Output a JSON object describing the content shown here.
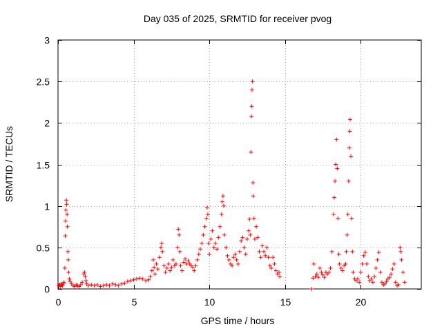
{
  "chart_data": {
    "type": "scatter",
    "title": "Day 035 of 2025, SRMTID for receiver pvog",
    "xlabel": "GPS time / hours",
    "ylabel": "SRMTID / TECUs",
    "xlim": [
      0,
      24
    ],
    "ylim": [
      0,
      3
    ],
    "x_ticks": [
      "0",
      "5",
      "10",
      "15",
      "20"
    ],
    "x_tick_values": [
      0,
      5,
      10,
      15,
      20
    ],
    "y_ticks": [
      "0",
      "0.5",
      "1",
      "1.5",
      "2",
      "2.5",
      "3"
    ],
    "y_tick_values": [
      0,
      0.5,
      1,
      1.5,
      2,
      2.5,
      3
    ],
    "grid": true,
    "marker": "plus",
    "color": "#ff0000",
    "series": [
      {
        "name": "SRMTID",
        "points": [
          [
            0.05,
            0.04
          ],
          [
            0.1,
            0.05
          ],
          [
            0.15,
            0.03
          ],
          [
            0.2,
            0.06
          ],
          [
            0.25,
            0.05
          ],
          [
            0.3,
            0.04
          ],
          [
            0.35,
            0.06
          ],
          [
            0.4,
            0.08
          ],
          [
            0.45,
            0.25
          ],
          [
            0.48,
            0.64
          ],
          [
            0.5,
            0.82
          ],
          [
            0.52,
            0.95
          ],
          [
            0.55,
            1.07
          ],
          [
            0.57,
            1.02
          ],
          [
            0.6,
            0.9
          ],
          [
            0.62,
            0.75
          ],
          [
            0.65,
            0.45
          ],
          [
            0.68,
            0.35
          ],
          [
            0.7,
            0.2
          ],
          [
            0.75,
            0.12
          ],
          [
            0.8,
            0.09
          ],
          [
            0.9,
            0.06
          ],
          [
            1.0,
            0.04
          ],
          [
            1.1,
            0.03
          ],
          [
            1.2,
            0.05
          ],
          [
            1.3,
            0.04
          ],
          [
            1.4,
            0.03
          ],
          [
            1.5,
            0.05
          ],
          [
            1.6,
            0.08
          ],
          [
            1.7,
            0.18
          ],
          [
            1.75,
            0.2
          ],
          [
            1.8,
            0.15
          ],
          [
            1.85,
            0.1
          ],
          [
            1.9,
            0.06
          ],
          [
            2.0,
            0.04
          ],
          [
            2.2,
            0.05
          ],
          [
            2.4,
            0.04
          ],
          [
            2.6,
            0.05
          ],
          [
            2.8,
            0.03
          ],
          [
            3.0,
            0.04
          ],
          [
            3.2,
            0.05
          ],
          [
            3.4,
            0.04
          ],
          [
            3.6,
            0.06
          ],
          [
            3.8,
            0.05
          ],
          [
            4.0,
            0.04
          ],
          [
            4.2,
            0.06
          ],
          [
            4.4,
            0.07
          ],
          [
            4.6,
            0.09
          ],
          [
            4.8,
            0.1
          ],
          [
            5.0,
            0.11
          ],
          [
            5.2,
            0.12
          ],
          [
            5.4,
            0.13
          ],
          [
            5.6,
            0.12
          ],
          [
            5.8,
            0.1
          ],
          [
            6.0,
            0.11
          ],
          [
            6.1,
            0.15
          ],
          [
            6.2,
            0.22
          ],
          [
            6.3,
            0.35
          ],
          [
            6.35,
            0.26
          ],
          [
            6.4,
            0.18
          ],
          [
            6.5,
            0.3
          ],
          [
            6.6,
            0.24
          ],
          [
            6.7,
            0.38
          ],
          [
            6.8,
            0.5
          ],
          [
            6.85,
            0.55
          ],
          [
            6.9,
            0.45
          ],
          [
            7.0,
            0.28
          ],
          [
            7.1,
            0.2
          ],
          [
            7.2,
            0.25
          ],
          [
            7.3,
            0.3
          ],
          [
            7.4,
            0.22
          ],
          [
            7.5,
            0.26
          ],
          [
            7.6,
            0.35
          ],
          [
            7.7,
            0.28
          ],
          [
            7.8,
            0.3
          ],
          [
            7.9,
            0.5
          ],
          [
            7.95,
            0.72
          ],
          [
            8.0,
            0.65
          ],
          [
            8.05,
            0.45
          ],
          [
            8.1,
            0.28
          ],
          [
            8.2,
            0.22
          ],
          [
            8.3,
            0.32
          ],
          [
            8.4,
            0.36
          ],
          [
            8.5,
            0.3
          ],
          [
            8.6,
            0.34
          ],
          [
            8.7,
            0.3
          ],
          [
            8.8,
            0.28
          ],
          [
            8.9,
            0.26
          ],
          [
            9.0,
            0.22
          ],
          [
            9.1,
            0.28
          ],
          [
            9.2,
            0.35
          ],
          [
            9.3,
            0.42
          ],
          [
            9.4,
            0.48
          ],
          [
            9.5,
            0.55
          ],
          [
            9.6,
            0.65
          ],
          [
            9.7,
            0.75
          ],
          [
            9.8,
            0.85
          ],
          [
            9.85,
            0.98
          ],
          [
            9.9,
            0.9
          ],
          [
            9.95,
            0.55
          ],
          [
            10.0,
            0.42
          ],
          [
            10.1,
            0.6
          ],
          [
            10.2,
            0.7
          ],
          [
            10.3,
            0.5
          ],
          [
            10.4,
            0.55
          ],
          [
            10.5,
            0.48
          ],
          [
            10.6,
            0.62
          ],
          [
            10.7,
            0.75
          ],
          [
            10.8,
            0.9
          ],
          [
            10.85,
            1.05
          ],
          [
            10.9,
            1.12
          ],
          [
            10.95,
            1.0
          ],
          [
            11.0,
            0.65
          ],
          [
            11.1,
            0.5
          ],
          [
            11.2,
            0.4
          ],
          [
            11.3,
            0.35
          ],
          [
            11.4,
            0.3
          ],
          [
            11.5,
            0.28
          ],
          [
            11.6,
            0.38
          ],
          [
            11.7,
            0.42
          ],
          [
            11.8,
            0.35
          ],
          [
            11.9,
            0.3
          ],
          [
            12.0,
            0.45
          ],
          [
            12.1,
            0.58
          ],
          [
            12.2,
            0.62
          ],
          [
            12.3,
            0.5
          ],
          [
            12.4,
            0.42
          ],
          [
            12.5,
            0.6
          ],
          [
            12.6,
            0.7
          ],
          [
            12.65,
            0.84
          ],
          [
            12.7,
            0.65
          ],
          [
            12.75,
            1.65
          ],
          [
            12.78,
            2.08
          ],
          [
            12.8,
            2.2
          ],
          [
            12.82,
            2.4
          ],
          [
            12.85,
            2.5
          ],
          [
            12.88,
            1.28
          ],
          [
            12.9,
            1.12
          ],
          [
            12.95,
            0.85
          ],
          [
            13.0,
            0.6
          ],
          [
            13.1,
            0.75
          ],
          [
            13.2,
            0.62
          ],
          [
            13.3,
            0.45
          ],
          [
            13.4,
            0.38
          ],
          [
            13.5,
            0.52
          ],
          [
            13.6,
            0.45
          ],
          [
            13.7,
            0.4
          ],
          [
            13.8,
            0.5
          ],
          [
            13.9,
            0.38
          ],
          [
            14.0,
            0.28
          ],
          [
            14.1,
            0.25
          ],
          [
            14.2,
            0.38
          ],
          [
            14.3,
            0.3
          ],
          [
            14.4,
            0.22
          ],
          [
            14.5,
            0.18
          ],
          [
            14.6,
            0.2
          ],
          [
            14.65,
            0.15
          ],
          [
            16.75,
            0.0
          ],
          [
            16.85,
            0.13
          ],
          [
            16.9,
            0.3
          ],
          [
            17.0,
            0.15
          ],
          [
            17.1,
            0.18
          ],
          [
            17.2,
            0.14
          ],
          [
            17.3,
            0.25
          ],
          [
            17.4,
            0.2
          ],
          [
            17.5,
            0.17
          ],
          [
            17.6,
            0.14
          ],
          [
            17.7,
            0.2
          ],
          [
            17.8,
            0.18
          ],
          [
            17.9,
            0.2
          ],
          [
            18.0,
            0.25
          ],
          [
            18.1,
            0.45
          ],
          [
            18.2,
            0.9
          ],
          [
            18.25,
            1.1
          ],
          [
            18.3,
            1.3
          ],
          [
            18.35,
            1.5
          ],
          [
            18.4,
            1.8
          ],
          [
            18.45,
            1.45
          ],
          [
            18.5,
            0.85
          ],
          [
            18.55,
            0.42
          ],
          [
            18.6,
            0.3
          ],
          [
            18.7,
            0.25
          ],
          [
            18.8,
            0.22
          ],
          [
            18.9,
            0.28
          ],
          [
            19.0,
            0.3
          ],
          [
            19.05,
            0.45
          ],
          [
            19.1,
            0.65
          ],
          [
            19.15,
            0.9
          ],
          [
            19.2,
            1.3
          ],
          [
            19.25,
            1.7
          ],
          [
            19.28,
            1.9
          ],
          [
            19.3,
            2.04
          ],
          [
            19.35,
            1.6
          ],
          [
            19.4,
            0.85
          ],
          [
            19.45,
            0.45
          ],
          [
            19.5,
            0.2
          ],
          [
            19.6,
            0.12
          ],
          [
            19.7,
            0.1
          ],
          [
            19.8,
            0.12
          ],
          [
            19.9,
            0.08
          ],
          [
            20.0,
            0.2
          ],
          [
            20.1,
            0.3
          ],
          [
            20.2,
            0.4
          ],
          [
            20.3,
            0.44
          ],
          [
            20.4,
            0.3
          ],
          [
            20.5,
            0.15
          ],
          [
            20.6,
            0.1
          ],
          [
            20.7,
            0.12
          ],
          [
            20.8,
            0.08
          ],
          [
            20.9,
            0.15
          ],
          [
            21.0,
            0.25
          ],
          [
            21.1,
            0.35
          ],
          [
            21.2,
            0.44
          ],
          [
            21.3,
            0.2
          ],
          [
            21.4,
            0.08
          ],
          [
            21.5,
            0.05
          ],
          [
            21.6,
            0.06
          ],
          [
            21.7,
            0.09
          ],
          [
            21.8,
            0.12
          ],
          [
            21.9,
            0.14
          ],
          [
            22.0,
            0.18
          ],
          [
            22.1,
            0.24
          ],
          [
            22.2,
            0.3
          ],
          [
            22.3,
            0.08
          ],
          [
            22.4,
            0.04
          ],
          [
            22.5,
            0.05
          ],
          [
            22.6,
            0.5
          ],
          [
            22.65,
            0.45
          ],
          [
            22.7,
            0.35
          ],
          [
            22.8,
            0.2
          ],
          [
            22.9,
            0.08
          ]
        ]
      }
    ]
  }
}
